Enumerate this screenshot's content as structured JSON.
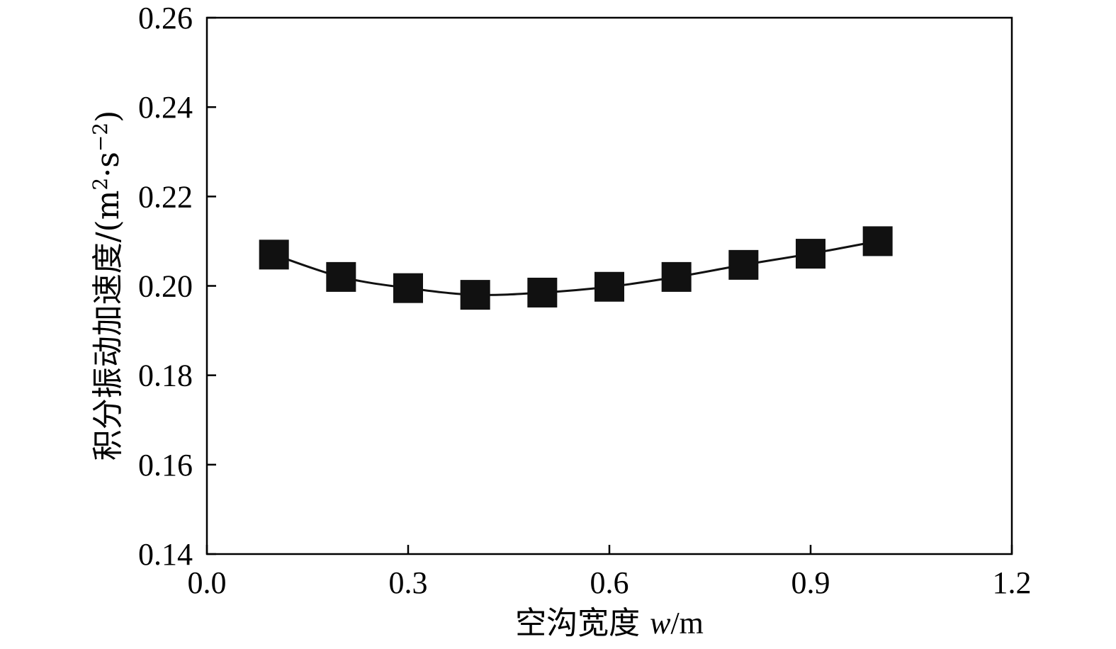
{
  "chart_data": {
    "type": "line",
    "marker": "square",
    "xlabel": {
      "prefix": "空沟宽度 ",
      "var": "w",
      "unit": "/m"
    },
    "ylabel": {
      "prefix": "积分振动加速度/(m",
      "sup1": "2",
      "mid": "·s",
      "sup2": "−2",
      "suffix": ")"
    },
    "xlim": [
      0.0,
      1.2
    ],
    "ylim": [
      0.14,
      0.26
    ],
    "xticks": [
      "0.0",
      "0.3",
      "0.6",
      "0.9",
      "1.2"
    ],
    "yticks": [
      "0.14",
      "0.16",
      "0.18",
      "0.20",
      "0.22",
      "0.24",
      "0.26"
    ],
    "grid": false,
    "colors": {
      "line": "#111111",
      "marker": "#111111",
      "axis": "#000000"
    },
    "series": [
      {
        "x": [
          0.1,
          0.2,
          0.3,
          0.4,
          0.5,
          0.6,
          0.7,
          0.8,
          0.9,
          1.0
        ],
        "values": [
          0.207,
          0.202,
          0.1995,
          0.198,
          0.1985,
          0.1998,
          0.202,
          0.2047,
          0.2072,
          0.21
        ]
      }
    ]
  }
}
